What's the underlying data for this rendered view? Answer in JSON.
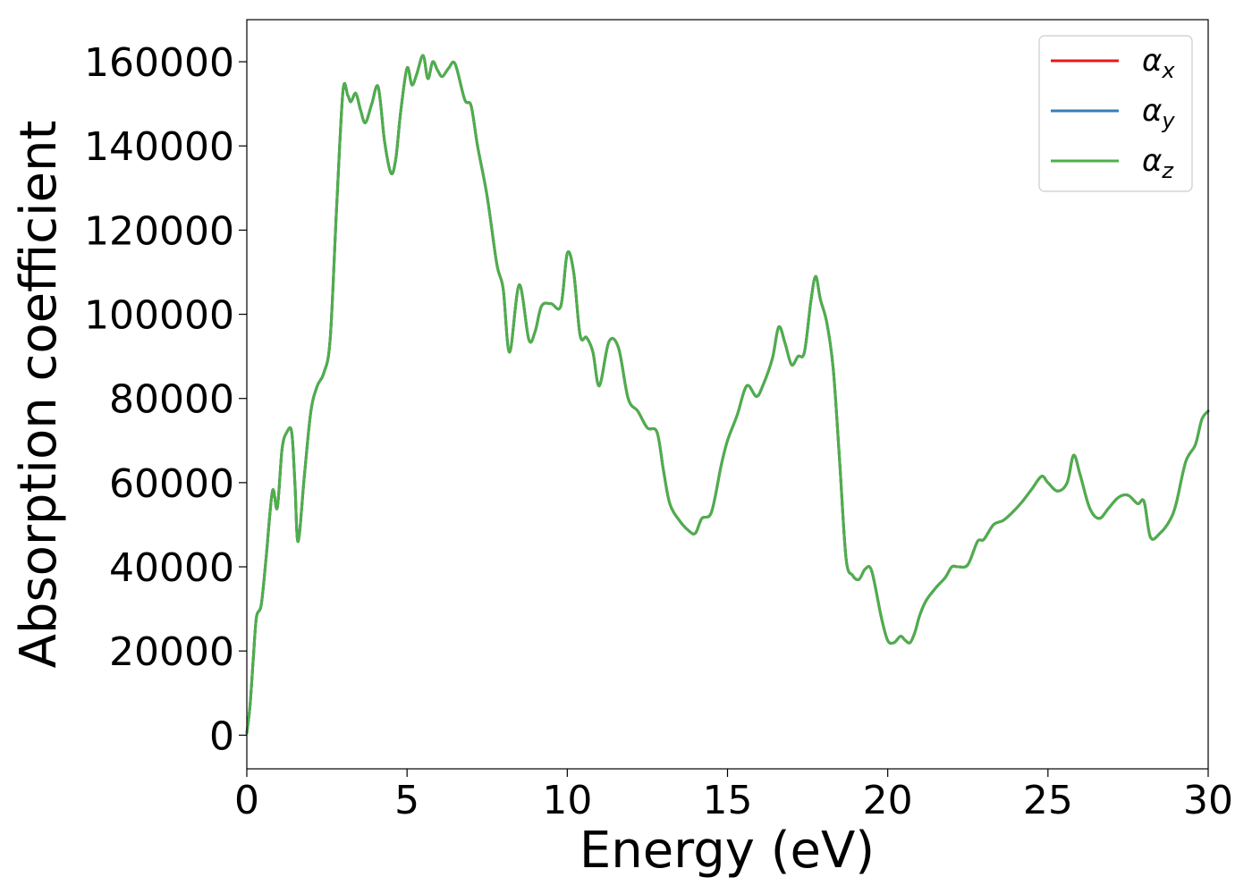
{
  "chart_data": {
    "type": "line",
    "title": "",
    "xlabel": "Energy (eV)",
    "ylabel": "Absorption coefficient",
    "xlim": [
      0,
      30
    ],
    "ylim": [
      -8000,
      170000
    ],
    "xticks": [
      0,
      5,
      10,
      15,
      20,
      25,
      30
    ],
    "yticks": [
      0,
      20000,
      40000,
      60000,
      80000,
      100000,
      120000,
      140000,
      160000
    ],
    "grid": false,
    "legend_position": "top-right",
    "legend": [
      {
        "symbol": "α",
        "subscript": "x",
        "color": "#e41a1c"
      },
      {
        "symbol": "α",
        "subscript": "y",
        "color": "#377eb8"
      },
      {
        "symbol": "α",
        "subscript": "z",
        "color": "#4daf4a"
      }
    ],
    "x": [
      0,
      0.1,
      0.2,
      0.3,
      0.45,
      0.6,
      0.8,
      0.95,
      1.1,
      1.25,
      1.4,
      1.5,
      1.6,
      1.8,
      2.0,
      2.2,
      2.4,
      2.6,
      2.8,
      3.0,
      3.15,
      3.25,
      3.4,
      3.55,
      3.7,
      3.9,
      4.1,
      4.3,
      4.5,
      4.65,
      4.8,
      5.0,
      5.15,
      5.3,
      5.5,
      5.65,
      5.8,
      5.95,
      6.1,
      6.3,
      6.5,
      6.8,
      7.0,
      7.2,
      7.5,
      7.8,
      8.0,
      8.2,
      8.5,
      8.8,
      9.0,
      9.2,
      9.5,
      9.8,
      10.0,
      10.2,
      10.4,
      10.6,
      10.8,
      11.0,
      11.3,
      11.6,
      11.9,
      12.2,
      12.5,
      12.8,
      13.0,
      13.2,
      13.5,
      13.8,
      14.0,
      14.2,
      14.5,
      14.8,
      15.0,
      15.3,
      15.6,
      15.9,
      16.1,
      16.4,
      16.6,
      16.8,
      17.0,
      17.2,
      17.4,
      17.6,
      17.75,
      17.9,
      18.1,
      18.3,
      18.5,
      18.7,
      18.9,
      19.1,
      19.3,
      19.5,
      19.8,
      20.0,
      20.2,
      20.4,
      20.55,
      20.7,
      20.85,
      21.0,
      21.2,
      21.5,
      21.8,
      22.0,
      22.2,
      22.5,
      22.8,
      23.0,
      23.3,
      23.6,
      23.9,
      24.2,
      24.5,
      24.8,
      25.0,
      25.3,
      25.6,
      25.8,
      26.0,
      26.3,
      26.6,
      26.9,
      27.2,
      27.5,
      27.8,
      28.0,
      28.2,
      28.5,
      28.8,
      29.0,
      29.3,
      29.6,
      29.8,
      30.0
    ],
    "series": [
      {
        "name": "α_x",
        "color": "#e41a1c",
        "values": [
          500,
          7000,
          18000,
          28000,
          31000,
          42000,
          58000,
          54000,
          68000,
          72000,
          72000,
          60000,
          46000,
          62000,
          77000,
          83000,
          86000,
          94000,
          125000,
          153000,
          152000,
          150500,
          152500,
          148500,
          145500,
          150000,
          154000,
          141000,
          133500,
          137000,
          148000,
          158500,
          154500,
          157000,
          161500,
          156000,
          160000,
          158000,
          156500,
          158500,
          159500,
          151000,
          149500,
          140000,
          128000,
          112000,
          106000,
          91000,
          107000,
          94000,
          96000,
          102000,
          102500,
          102000,
          114500,
          110000,
          95000,
          94500,
          91000,
          83000,
          93500,
          92000,
          80000,
          77000,
          73000,
          72000,
          63000,
          55000,
          51000,
          48500,
          48000,
          51500,
          53000,
          64000,
          70000,
          76000,
          83000,
          80500,
          83000,
          89500,
          97000,
          93000,
          88000,
          90000,
          91000,
          103000,
          109000,
          103500,
          98000,
          87000,
          65000,
          42000,
          38000,
          37000,
          39500,
          39000,
          28000,
          22500,
          22000,
          23500,
          22500,
          22000,
          24500,
          28500,
          32000,
          35000,
          37500,
          40000,
          40000,
          40500,
          46000,
          46500,
          50000,
          51000,
          53000,
          55500,
          58500,
          61500,
          60000,
          58000,
          60000,
          66500,
          62000,
          54000,
          51500,
          54000,
          56500,
          57000,
          55000,
          55500,
          47000,
          48000,
          51000,
          55000,
          65000,
          69000,
          75000,
          77000
        ]
      },
      {
        "name": "α_y",
        "color": "#377eb8",
        "values": [
          500,
          7000,
          18000,
          28000,
          31000,
          42000,
          58000,
          54000,
          68000,
          72000,
          72000,
          60000,
          46000,
          62000,
          77000,
          83000,
          86000,
          94000,
          125000,
          153000,
          152000,
          150500,
          152500,
          148500,
          145500,
          150000,
          154000,
          141000,
          133500,
          137000,
          148000,
          158500,
          154500,
          157000,
          161500,
          156000,
          160000,
          158000,
          156500,
          158500,
          159500,
          151000,
          149500,
          140000,
          128000,
          112000,
          106000,
          91000,
          107000,
          94000,
          96000,
          102000,
          102500,
          102000,
          114500,
          110000,
          95000,
          94500,
          91000,
          83000,
          93500,
          92000,
          80000,
          77000,
          73000,
          72000,
          63000,
          55000,
          51000,
          48500,
          48000,
          51500,
          53000,
          64000,
          70000,
          76000,
          83000,
          80500,
          83000,
          89500,
          97000,
          93000,
          88000,
          90000,
          91000,
          103000,
          109000,
          103500,
          98000,
          87000,
          65000,
          42000,
          38000,
          37000,
          39500,
          39000,
          28000,
          22500,
          22000,
          23500,
          22500,
          22000,
          24500,
          28500,
          32000,
          35000,
          37500,
          40000,
          40000,
          40500,
          46000,
          46500,
          50000,
          51000,
          53000,
          55500,
          58500,
          61500,
          60000,
          58000,
          60000,
          66500,
          62000,
          54000,
          51500,
          54000,
          56500,
          57000,
          55000,
          55500,
          47000,
          48000,
          51000,
          55000,
          65000,
          69000,
          75000,
          77000
        ]
      },
      {
        "name": "α_z",
        "color": "#4daf4a",
        "values": [
          500,
          7000,
          18000,
          28000,
          31000,
          42000,
          58000,
          54000,
          68000,
          72000,
          72000,
          60000,
          46000,
          62000,
          77000,
          83000,
          86000,
          94000,
          125000,
          153000,
          152000,
          150500,
          152500,
          148500,
          145500,
          150000,
          154000,
          141000,
          133500,
          137000,
          148000,
          158500,
          154500,
          157000,
          161500,
          156000,
          160000,
          158000,
          156500,
          158500,
          159500,
          151000,
          149500,
          140000,
          128000,
          112000,
          106000,
          91000,
          107000,
          94000,
          96000,
          102000,
          102500,
          102000,
          114500,
          110000,
          95000,
          94500,
          91000,
          83000,
          93500,
          92000,
          80000,
          77000,
          73000,
          72000,
          63000,
          55000,
          51000,
          48500,
          48000,
          51500,
          53000,
          64000,
          70000,
          76000,
          83000,
          80500,
          83000,
          89500,
          97000,
          93000,
          88000,
          90000,
          91000,
          103000,
          109000,
          103500,
          98000,
          87000,
          65000,
          42000,
          38000,
          37000,
          39500,
          39000,
          28000,
          22500,
          22000,
          23500,
          22500,
          22000,
          24500,
          28500,
          32000,
          35000,
          37500,
          40000,
          40000,
          40500,
          46000,
          46500,
          50000,
          51000,
          53000,
          55500,
          58500,
          61500,
          60000,
          58000,
          60000,
          66500,
          62000,
          54000,
          51500,
          54000,
          56500,
          57000,
          55000,
          55500,
          47000,
          48000,
          51000,
          55000,
          65000,
          69000,
          75000,
          77000
        ]
      }
    ]
  }
}
